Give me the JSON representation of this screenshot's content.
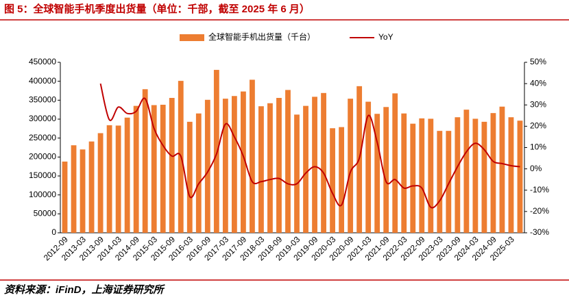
{
  "chart_data": {
    "type": "bar-line",
    "title": "图 5：全球智能手机季度出货量（单位：千部，截至 2025 年 6 月）",
    "source": "资料来源：iFinD，上海证券研究所",
    "categories": [
      "2012-09",
      null,
      "2013-03",
      null,
      "2013-09",
      null,
      "2014-03",
      null,
      "2014-09",
      null,
      "2015-03",
      null,
      "2015-09",
      null,
      "2016-03",
      null,
      "2016-09",
      null,
      "2017-03",
      null,
      "2017-09",
      null,
      "2018-03",
      null,
      "2018-09",
      null,
      "2019-03",
      null,
      "2019-09",
      null,
      "2020-03",
      null,
      "2020-09",
      null,
      "2021-03",
      null,
      "2021-09",
      null,
      "2022-03",
      null,
      "2022-09",
      null,
      "2023-03",
      null,
      "2023-09",
      null,
      "2024-03",
      null,
      "2024-09",
      null,
      "2025-03",
      null
    ],
    "series": [
      {
        "name": "全球智能手机出货量（千台）",
        "color": "#ed7d31",
        "type": "bar",
        "values": [
          188000,
          231000,
          220000,
          241000,
          263000,
          284000,
          283000,
          304000,
          335000,
          379000,
          337000,
          338000,
          356000,
          401000,
          293000,
          315000,
          351000,
          430000,
          354000,
          361000,
          373000,
          404000,
          334000,
          342000,
          356000,
          377000,
          312000,
          335000,
          359000,
          369000,
          276000,
          279000,
          354000,
          387000,
          346000,
          314000,
          332000,
          368000,
          315000,
          288000,
          302000,
          301000,
          269000,
          269000,
          305000,
          325000,
          301000,
          293000,
          316000,
          333000,
          305000,
          296000
        ]
      },
      {
        "name": "YoY",
        "color": "#c00000",
        "type": "line",
        "axis": "y2",
        "values": [
          null,
          null,
          null,
          null,
          40,
          23,
          29,
          26,
          27,
          33,
          19,
          11,
          6,
          6,
          -13,
          -7,
          -1.5,
          7,
          21,
          15,
          6,
          -6,
          -6,
          -5,
          -4.5,
          -7,
          -7,
          -2,
          1,
          -2,
          -11.5,
          -17,
          -1.5,
          5,
          25,
          12.5,
          -6,
          -5,
          -9,
          -8,
          -9,
          -18,
          -15,
          -7,
          1,
          8,
          12,
          9,
          3.5,
          2.5,
          1.5,
          1
        ]
      }
    ],
    "ylim": [
      0,
      450000
    ],
    "yticks": [
      0,
      50000,
      100000,
      150000,
      200000,
      250000,
      300000,
      350000,
      400000,
      450000
    ],
    "y2lim": [
      -30,
      50
    ],
    "y2ticks": [
      {
        "value": -30,
        "label": "-30%"
      },
      {
        "value": -20,
        "label": "-20%"
      },
      {
        "value": -10,
        "label": "-10%"
      },
      {
        "value": 0,
        "label": "0%"
      },
      {
        "value": 10,
        "label": "10%"
      },
      {
        "value": 20,
        "label": "20%"
      },
      {
        "value": 30,
        "label": "30%"
      },
      {
        "value": 40,
        "label": "40%"
      },
      {
        "value": 50,
        "label": "50%"
      }
    ],
    "legend": "top"
  }
}
